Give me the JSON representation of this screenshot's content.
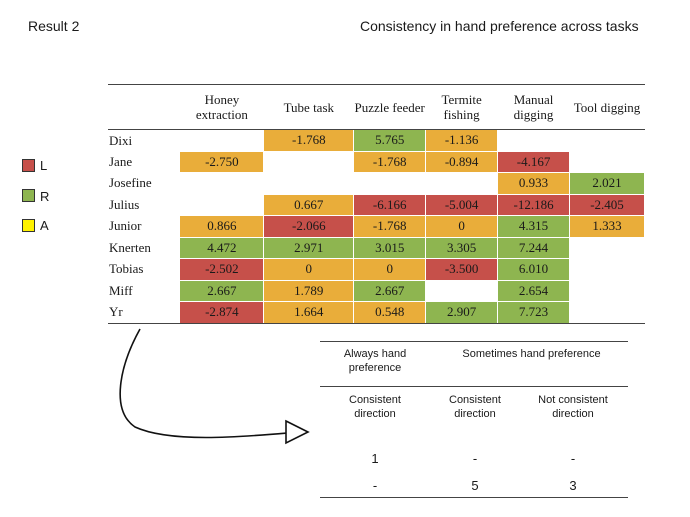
{
  "header": {
    "left_title": "Result 2",
    "right_title": "Consistency in hand preference across tasks"
  },
  "legend": [
    {
      "label": "L",
      "color": "#c6504a"
    },
    {
      "label": "R",
      "color": "#8eb550"
    },
    {
      "label": "A",
      "color": "#fff200"
    }
  ],
  "colors": {
    "L": "#c6504a",
    "R": "#8eb550",
    "A": "#e9ad3a"
  },
  "table": {
    "columns": [
      "",
      "Honey extraction",
      "Tube task",
      "Puzzle feeder",
      "Termite fishing",
      "Manual digging",
      "Tool digging"
    ],
    "rows": [
      {
        "name": "Dixi",
        "cells": [
          {
            "v": "",
            "c": "N"
          },
          {
            "v": "-1.768",
            "c": "A"
          },
          {
            "v": "5.765",
            "c": "R"
          },
          {
            "v": "-1.136",
            "c": "A"
          },
          {
            "v": "",
            "c": "N"
          },
          {
            "v": "",
            "c": "N"
          }
        ]
      },
      {
        "name": "Jane",
        "cells": [
          {
            "v": "-2.750",
            "c": "A"
          },
          {
            "v": "",
            "c": "N"
          },
          {
            "v": "-1.768",
            "c": "A"
          },
          {
            "v": "-0.894",
            "c": "A"
          },
          {
            "v": "-4.167",
            "c": "L"
          },
          {
            "v": "",
            "c": "N"
          }
        ]
      },
      {
        "name": "Josefine",
        "cells": [
          {
            "v": "",
            "c": "N"
          },
          {
            "v": "",
            "c": "N"
          },
          {
            "v": "",
            "c": "N"
          },
          {
            "v": "",
            "c": "N"
          },
          {
            "v": "0.933",
            "c": "A"
          },
          {
            "v": "2.021",
            "c": "R"
          }
        ]
      },
      {
        "name": "Julius",
        "cells": [
          {
            "v": "",
            "c": "N"
          },
          {
            "v": "0.667",
            "c": "A"
          },
          {
            "v": "-6.166",
            "c": "L"
          },
          {
            "v": "-5.004",
            "c": "L"
          },
          {
            "v": "-12.186",
            "c": "L"
          },
          {
            "v": "-2.405",
            "c": "L"
          }
        ]
      },
      {
        "name": "Junior",
        "cells": [
          {
            "v": "0.866",
            "c": "A"
          },
          {
            "v": "-2.066",
            "c": "L"
          },
          {
            "v": "-1.768",
            "c": "A"
          },
          {
            "v": "0",
            "c": "A"
          },
          {
            "v": "4.315",
            "c": "R"
          },
          {
            "v": "1.333",
            "c": "A"
          }
        ]
      },
      {
        "name": "Knerten",
        "cells": [
          {
            "v": "4.472",
            "c": "R"
          },
          {
            "v": "2.971",
            "c": "R"
          },
          {
            "v": "3.015",
            "c": "R"
          },
          {
            "v": "3.305",
            "c": "R"
          },
          {
            "v": "7.244",
            "c": "R"
          },
          {
            "v": "",
            "c": "N"
          }
        ]
      },
      {
        "name": "Tobias",
        "cells": [
          {
            "v": "-2.502",
            "c": "L"
          },
          {
            "v": "0",
            "c": "A"
          },
          {
            "v": "0",
            "c": "A"
          },
          {
            "v": "-3.500",
            "c": "L"
          },
          {
            "v": "6.010",
            "c": "R"
          },
          {
            "v": "",
            "c": "N"
          }
        ]
      },
      {
        "name": "Miff",
        "cells": [
          {
            "v": "2.667",
            "c": "R"
          },
          {
            "v": "1.789",
            "c": "A"
          },
          {
            "v": "2.667",
            "c": "R"
          },
          {
            "v": "",
            "c": "N"
          },
          {
            "v": "2.654",
            "c": "R"
          },
          {
            "v": "",
            "c": "N"
          }
        ]
      },
      {
        "name": "Yr",
        "cells": [
          {
            "v": "-2.874",
            "c": "L"
          },
          {
            "v": "1.664",
            "c": "A"
          },
          {
            "v": "0.548",
            "c": "A"
          },
          {
            "v": "2.907",
            "c": "R"
          },
          {
            "v": "7.723",
            "c": "R"
          },
          {
            "v": "",
            "c": "N"
          }
        ]
      }
    ]
  },
  "summary": {
    "group_always": "Always hand preference",
    "group_sometimes": "Sometimes hand preference",
    "sub_1": "Consistent direction",
    "sub_2": "Consistent direction",
    "sub_3": "Not consistent direction",
    "row1": [
      "1",
      "-",
      "-"
    ],
    "row2": [
      "-",
      "5",
      "3"
    ]
  }
}
